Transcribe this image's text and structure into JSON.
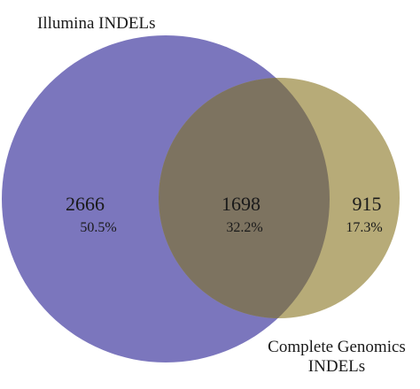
{
  "sets": {
    "a": {
      "label": "Illumina INDELs",
      "color": "#7b76bd"
    },
    "b": {
      "label_line1": "Complete Genomics",
      "label_line2": "INDELs",
      "color": "#b7ab78"
    }
  },
  "regions": {
    "only_a": {
      "count": "2666",
      "percent": "50.5%"
    },
    "both": {
      "count": "1698",
      "percent": "32.2%",
      "color": "#7d7360"
    },
    "only_b": {
      "count": "915",
      "percent": "17.3%"
    }
  }
}
